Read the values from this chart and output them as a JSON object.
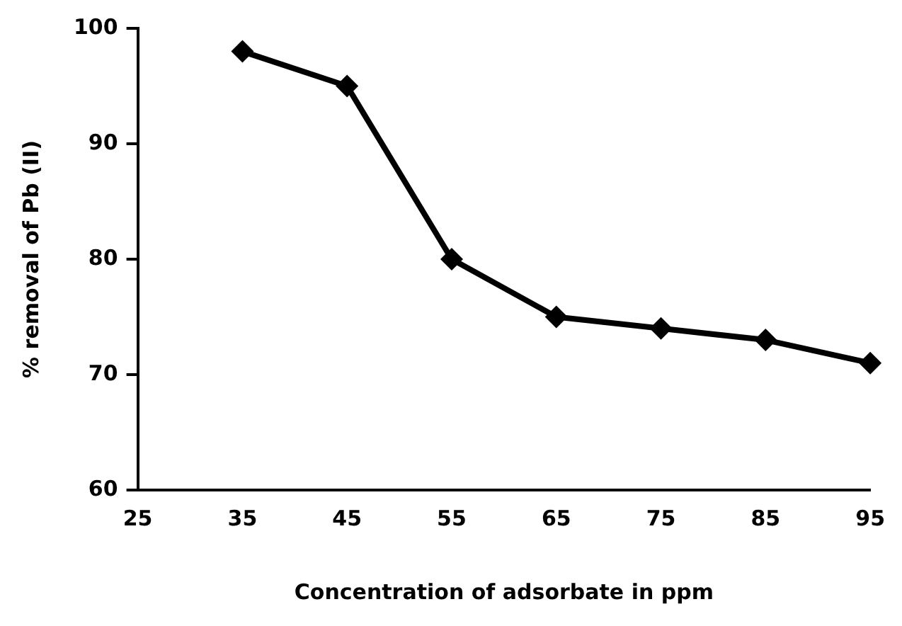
{
  "chart_data": {
    "type": "line",
    "xlabel": "Concentration of adsorbate in ppm",
    "ylabel": "% removal of Pb (II)",
    "x": [
      35,
      45,
      55,
      65,
      75,
      85,
      95
    ],
    "series": [
      {
        "color": "#000000",
        "values": [
          98,
          95,
          80,
          75,
          74,
          73,
          71
        ]
      }
    ],
    "xlim": [
      25,
      95
    ],
    "xticks": [
      25,
      35,
      45,
      55,
      65,
      75,
      85,
      95
    ],
    "ylim": [
      60,
      100
    ],
    "yticks": [
      60,
      70,
      80,
      90,
      100
    ],
    "grid": false,
    "legend": false,
    "marker": "diamond",
    "line_style": "solid"
  }
}
